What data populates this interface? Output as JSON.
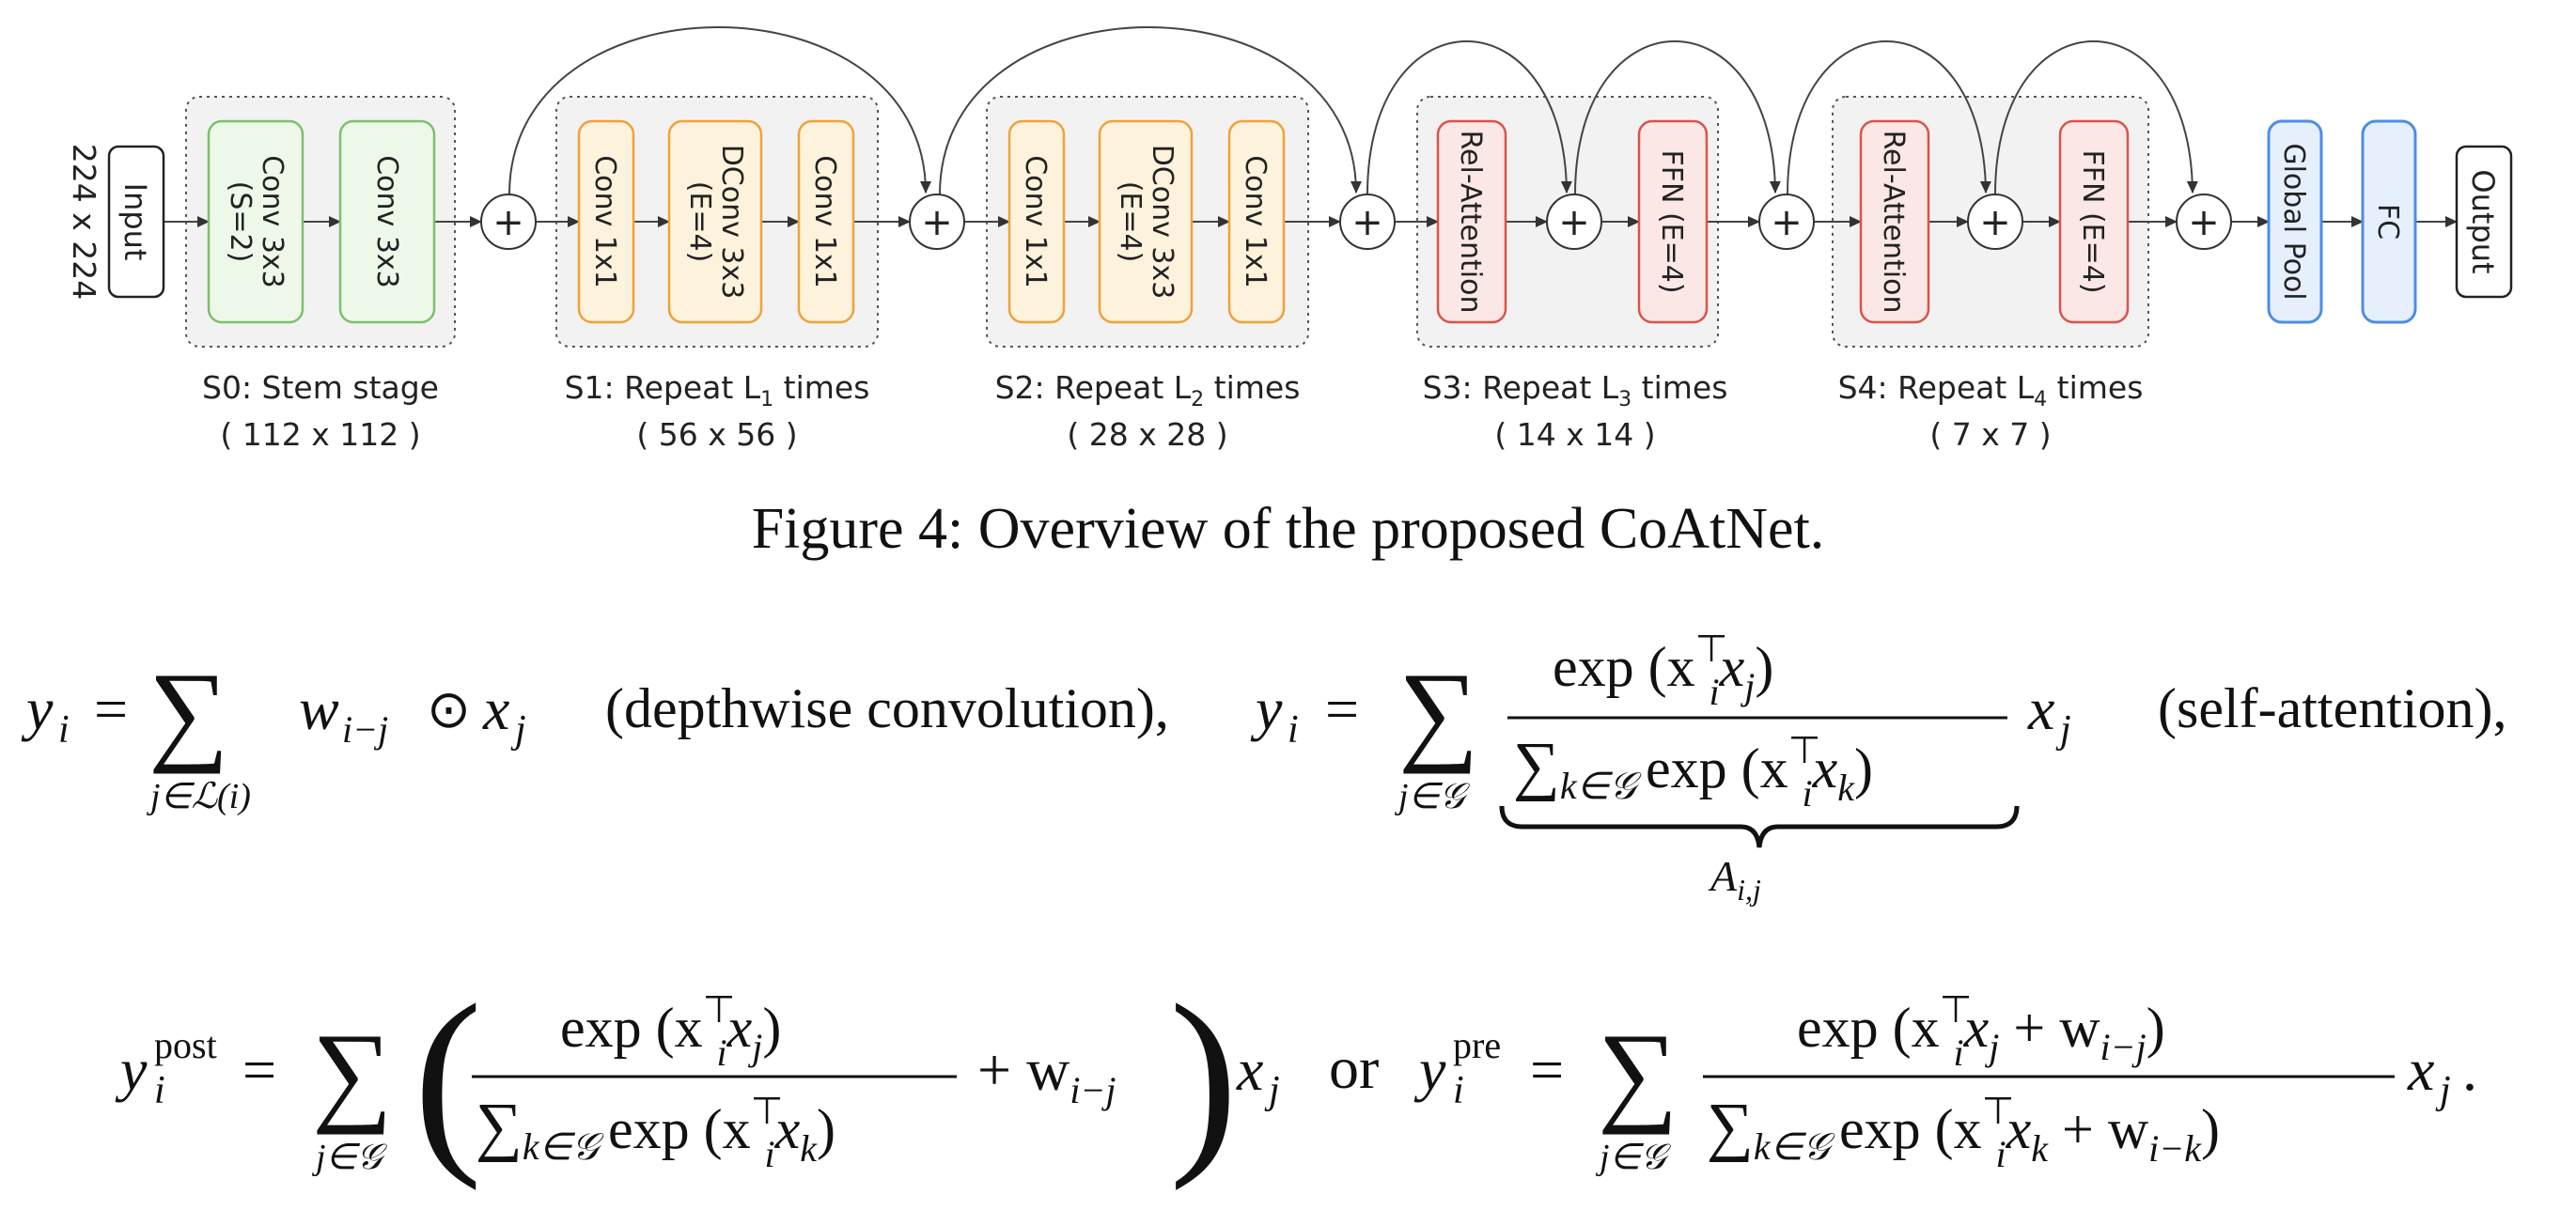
{
  "input_size": "224 x 224",
  "nodes": {
    "input": "Input",
    "s0_conv1_a": "Conv 3x3",
    "s0_conv1_b": "(S=2)",
    "s0_conv2": "Conv 3x3",
    "s1_conv1": "Conv 1x1",
    "s1_dconv_a": "DConv 3x3",
    "s1_dconv_b": "(E=4)",
    "s1_conv2": "Conv 1x1",
    "s2_conv1": "Conv 1x1",
    "s2_dconv_a": "DConv 3x3",
    "s2_dconv_b": "(E=4)",
    "s2_conv2": "Conv 1x1",
    "s3_attn": "Rel-Attention",
    "s3_ffn": "FFN (E=4)",
    "s4_attn": "Rel-Attention",
    "s4_ffn": "FFN (E=4)",
    "pool": "Global Pool",
    "fc": "FC",
    "output": "Output"
  },
  "stages": {
    "s0": {
      "label": "S0: Stem stage",
      "size": "( 112 x 112 )"
    },
    "s1": {
      "label_pre": "S1: Repeat L",
      "sub": "1",
      "label_post": " times",
      "size": "( 56 x 56 )"
    },
    "s2": {
      "label_pre": "S2: Repeat L",
      "sub": "2",
      "label_post": " times",
      "size": "( 28 x 28 )"
    },
    "s3": {
      "label_pre": "S3: Repeat L",
      "sub": "3",
      "label_post": " times",
      "size": "( 14 x 14 )"
    },
    "s4": {
      "label_pre": "S4: Repeat L",
      "sub": "4",
      "label_post": " times",
      "size": "( 7 x 7 )"
    }
  },
  "plus_symbol": "+",
  "caption": "Figure 4: Overview of the proposed CoAtNet.",
  "eq1": {
    "lhs_y": "y",
    "lhs_i": "i",
    "eq": "=",
    "sum": "∑",
    "sub_j": "j∈ℒ(i)",
    "term": "w",
    "term_sub": "i−j",
    "odot": "⊙",
    "x": "x",
    "x_sub": "j",
    "note": "(depthwise convolution),"
  },
  "eq2": {
    "lhs_y": "y",
    "lhs_i": "i",
    "eq": "=",
    "sum": "∑",
    "sub_j": "j∈𝒢",
    "num": "exp (x",
    "num_sup": "⊤",
    "num_i": "i",
    "num_rest": "x",
    "num_j": "j",
    "num_close": ")",
    "den_sum": "∑",
    "den_sub": "k∈𝒢",
    "den": "exp (x",
    "den_sup": "⊤",
    "den_i": "i",
    "den_rest": "x",
    "den_k": "k",
    "den_close": ")",
    "brace_label": "A",
    "brace_sub": "i,j",
    "x": "x",
    "x_sub": "j",
    "note": "(self-attention),"
  },
  "eq3": {
    "lhs_y": "y",
    "lhs_sup": "post",
    "lhs_i": "i",
    "eq": "=",
    "sum": "∑",
    "sub_j": "j∈𝒢",
    "lparen": "(",
    "rparen": ")",
    "num": "exp (x",
    "num_sup": "⊤",
    "num_i": "i",
    "num_rest": "x",
    "num_j": "j",
    "num_close": ")",
    "den_sum": "∑",
    "den_sub": "k∈𝒢",
    "den": "exp (x",
    "den_sup": "⊤",
    "den_i": "i",
    "den_rest": "x",
    "den_k": "k",
    "den_close": ")",
    "plus_w": "+ w",
    "w_sub": "i−j",
    "x": "x",
    "x_sub": "j",
    "or": "or"
  },
  "eq4": {
    "lhs_y": "y",
    "lhs_sup": "pre",
    "lhs_i": "i",
    "eq": "=",
    "sum": "∑",
    "sub_j": "j∈𝒢",
    "num": "exp (x",
    "num_sup": "⊤",
    "num_i": "i",
    "num_rest": "x",
    "num_j": "j",
    "num_plus": " + w",
    "num_w_sub": "i−j",
    "num_close": ")",
    "den_sum": "∑",
    "den_sub": "k∈𝒢",
    "den": "exp (x",
    "den_sup": "⊤",
    "den_i": "i",
    "den_rest": "x",
    "den_k": "k",
    "den_plus": " + w",
    "den_w_sub": "i−k",
    "den_close": ")",
    "x": "x",
    "x_sub": "j",
    "period": "."
  },
  "colors": {
    "green_fill": "#eef8e9",
    "green_stroke": "#7cc06b",
    "orange_fill": "#fdf2dc",
    "orange_stroke": "#efa23a",
    "red_fill": "#fbe7e5",
    "red_stroke": "#d9544a",
    "blue_fill": "#e6effc",
    "blue_stroke": "#4d8de6",
    "stage_bg": "#f2f2f2"
  }
}
